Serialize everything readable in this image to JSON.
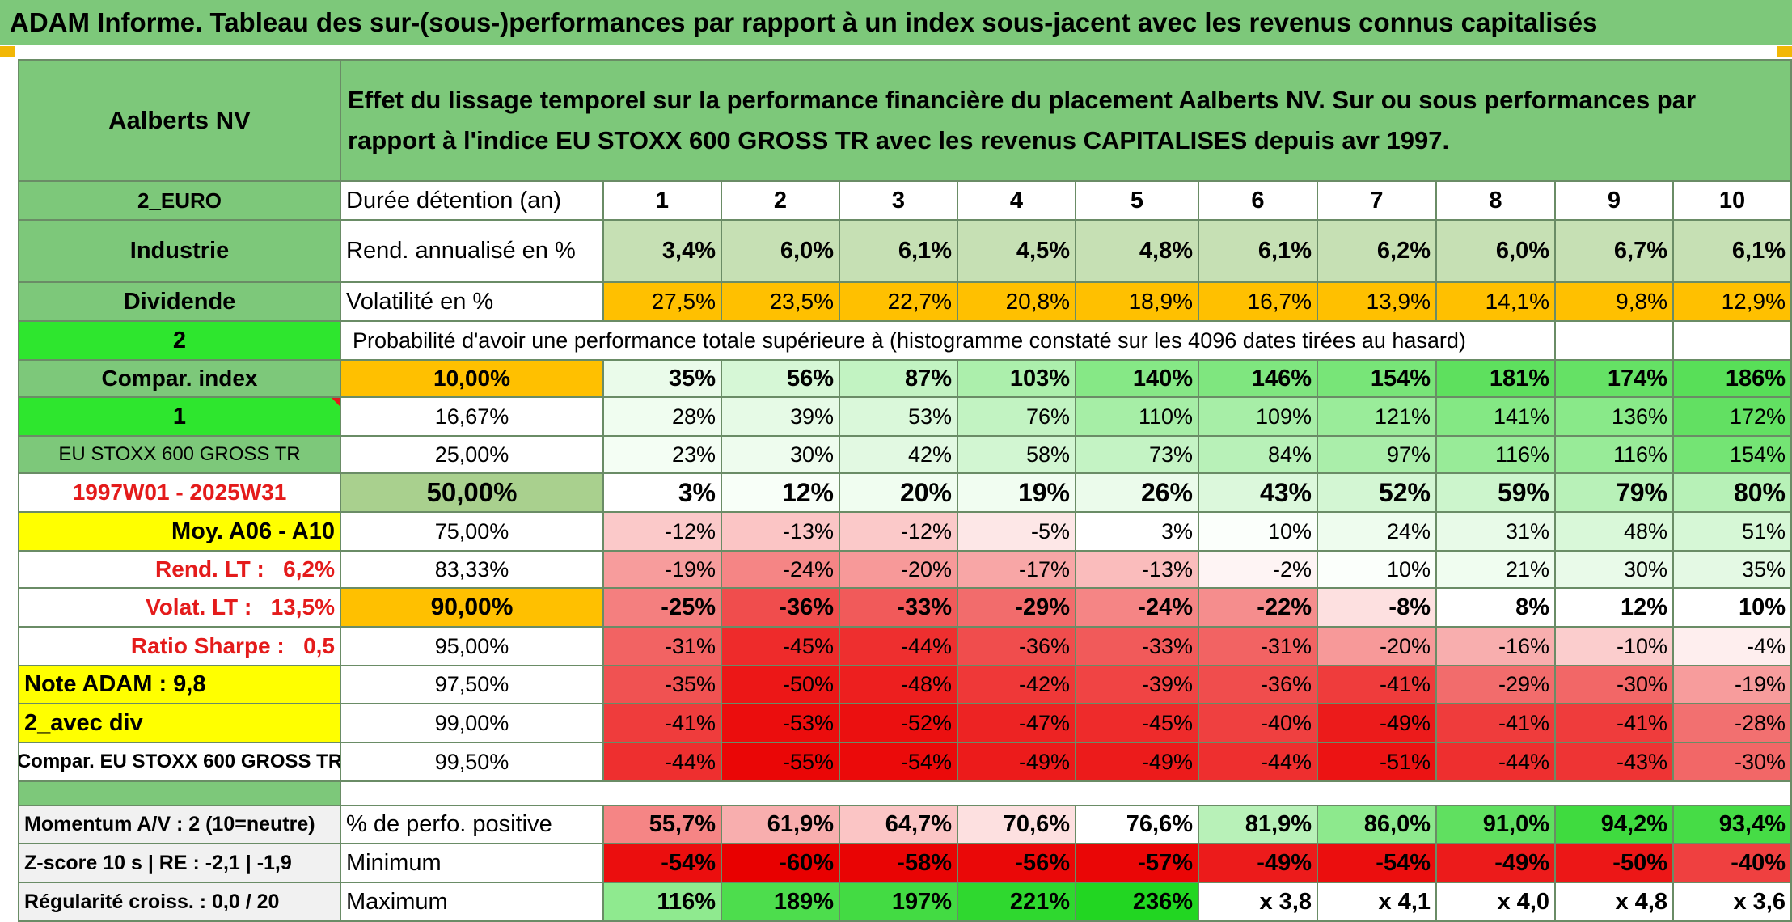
{
  "title": "ADAM Informe. Tableau des sur-(sous-)performances par rapport à un index sous-jacent avec les revenus connus capitalisés",
  "header": {
    "asset_name": "Aalberts NV",
    "description": "Effet du lissage temporel sur la performance financière du placement Aalberts NV. Sur ou sous performances par rapport à l'indice EU STOXX 600 GROSS TR avec les revenus CAPITALISES depuis avr 1997."
  },
  "left": {
    "currency": "2_EURO",
    "sector": "Industrie",
    "dividend": "Dividende",
    "code": "2",
    "compar_index": "Compar. index",
    "index_code": "1",
    "index_name": "EU STOXX 600 GROSS TR",
    "period": "1997W01 - 2025W31",
    "moy": "Moy. A06 - A10",
    "rend_lt": "Rend. LT :   6,2%",
    "volat_lt": "Volat. LT :   13,5%",
    "sharpe": "Ratio Sharpe :   0,5",
    "note": "Note ADAM : 9,8",
    "avec_div": "2_avec div",
    "compar_full": "Compar. EU STOXX 600 GROSS TR",
    "momentum": "Momentum A/V : 2 (10=neutre)",
    "zscore": "Z-score 10 s | RE : -2,1 | -1,9",
    "regularite": "Régularité croiss. : 0,0 / 20"
  },
  "labels": {
    "duree": "Durée détention (an)",
    "rend": "Rend. annualisé en %",
    "volat": "Volatilité en %",
    "proba": "Probabilité d'avoir une performance totale supérieure à (histogramme constaté sur les 4096 dates tirées au hasard)",
    "pct_pos": "% de perfo. positive",
    "minimum": "Minimum",
    "maximum": "Maximum"
  },
  "years": [
    "1",
    "2",
    "3",
    "4",
    "5",
    "6",
    "7",
    "8",
    "9",
    "10"
  ],
  "rend": [
    "3,4%",
    "6,0%",
    "6,1%",
    "4,5%",
    "4,8%",
    "6,1%",
    "6,2%",
    "6,0%",
    "6,7%",
    "6,1%"
  ],
  "volat": [
    "27,5%",
    "23,5%",
    "22,7%",
    "20,8%",
    "18,9%",
    "16,7%",
    "13,9%",
    "14,1%",
    "9,8%",
    "12,9%"
  ],
  "quantiles": [
    {
      "q": "10,00%",
      "vals": [
        "35%",
        "56%",
        "87%",
        "103%",
        "140%",
        "146%",
        "154%",
        "181%",
        "174%",
        "186%"
      ],
      "colors": [
        "#eafbea",
        "#d6f7d6",
        "#c2f3c2",
        "#acefac",
        "#86e886",
        "#7fe67f",
        "#78e578",
        "#5ee05e",
        "#65e165",
        "#58df58"
      ]
    },
    {
      "q": "16,67%",
      "vals": [
        "28%",
        "39%",
        "53%",
        "76%",
        "110%",
        "109%",
        "121%",
        "141%",
        "136%",
        "172%"
      ],
      "colors": [
        "#f0fdf0",
        "#e6fae6",
        "#daf8da",
        "#c2f3c2",
        "#a6eea6",
        "#a7eea7",
        "#9aec9a",
        "#84e884",
        "#89e989",
        "#62e062"
      ]
    },
    {
      "q": "25,00%",
      "vals": [
        "23%",
        "30%",
        "42%",
        "58%",
        "73%",
        "84%",
        "97%",
        "116%",
        "116%",
        "154%"
      ],
      "colors": [
        "#f4fef4",
        "#eefcee",
        "#e2f9e2",
        "#d2f6d2",
        "#c4f3c4",
        "#b8f1b8",
        "#aaeeaa",
        "#98eb98",
        "#98eb98",
        "#74e474"
      ]
    },
    {
      "q": "50,00%",
      "vals": [
        "3%",
        "12%",
        "20%",
        "19%",
        "26%",
        "43%",
        "52%",
        "59%",
        "79%",
        "80%"
      ],
      "colors": [
        "#ffffff",
        "#f8fff8",
        "#f0fdf0",
        "#f1fdf1",
        "#ebfbeb",
        "#dcf8dc",
        "#d3f6d3",
        "#ccf5cc",
        "#b8f1b8",
        "#b7f1b7"
      ]
    },
    {
      "q": "75,00%",
      "vals": [
        "-12%",
        "-13%",
        "-12%",
        "-5%",
        "3%",
        "10%",
        "24%",
        "31%",
        "48%",
        "51%"
      ],
      "colors": [
        "#fbc9c9",
        "#fbc5c5",
        "#fbc9c9",
        "#fde7e7",
        "#ffffff",
        "#fbfffb",
        "#eefcee",
        "#e8fae8",
        "#d9f8d9",
        "#d6f7d6"
      ]
    },
    {
      "q": "83,33%",
      "vals": [
        "-19%",
        "-24%",
        "-20%",
        "-17%",
        "-13%",
        "-2%",
        "10%",
        "21%",
        "30%",
        "35%"
      ],
      "colors": [
        "#f79c9c",
        "#f58585",
        "#f79999",
        "#f8a6a6",
        "#fabcbc",
        "#fef4f4",
        "#fbfffb",
        "#f0fdf0",
        "#e9fae9",
        "#e4f9e4"
      ]
    },
    {
      "q": "90,00%",
      "vals": [
        "-25%",
        "-36%",
        "-33%",
        "-29%",
        "-24%",
        "-22%",
        "-8%",
        "8%",
        "12%",
        "10%"
      ],
      "colors": [
        "#f47f7f",
        "#f04d4d",
        "#f15a5a",
        "#f26c6c",
        "#f58585",
        "#f58d8d",
        "#fde0e0",
        "#ffffff",
        "#ffffff",
        "#ffffff"
      ]
    },
    {
      "q": "95,00%",
      "vals": [
        "-31%",
        "-45%",
        "-44%",
        "-36%",
        "-33%",
        "-31%",
        "-20%",
        "-16%",
        "-10%",
        "-4%"
      ],
      "colors": [
        "#f26363",
        "#ee2b2b",
        "#ee2f2f",
        "#f04d4d",
        "#f15a5a",
        "#f26363",
        "#f79999",
        "#f8aeae",
        "#fbcdcd",
        "#feeeee"
      ]
    },
    {
      "q": "97,50%",
      "vals": [
        "-35%",
        "-50%",
        "-48%",
        "-42%",
        "-39%",
        "-36%",
        "-41%",
        "-29%",
        "-30%",
        "-19%"
      ],
      "colors": [
        "#f05252",
        "#ec1717",
        "#ed1f1f",
        "#ef3838",
        "#f04444",
        "#f04d4d",
        "#ef3c3c",
        "#f26c6c",
        "#f26767",
        "#f79c9c"
      ]
    },
    {
      "q": "99,00%",
      "vals": [
        "-41%",
        "-53%",
        "-52%",
        "-47%",
        "-45%",
        "-40%",
        "-49%",
        "-41%",
        "-41%",
        "-28%"
      ],
      "colors": [
        "#ef3c3c",
        "#eb0d0d",
        "#eb1010",
        "#ed2323",
        "#ee2b2b",
        "#ef4040",
        "#ec1b1b",
        "#ef3c3c",
        "#ef3c3c",
        "#f27070"
      ]
    },
    {
      "q": "99,50%",
      "vals": [
        "-44%",
        "-55%",
        "-54%",
        "-49%",
        "-49%",
        "-44%",
        "-51%",
        "-44%",
        "-43%",
        "-30%"
      ],
      "colors": [
        "#ee2f2f",
        "#ea0606",
        "#eb0a0a",
        "#ec1b1b",
        "#ec1b1b",
        "#ee2f2f",
        "#ec1313",
        "#ee2f2f",
        "#ee3434",
        "#f26767"
      ]
    }
  ],
  "pct_pos": {
    "vals": [
      "55,7%",
      "61,9%",
      "64,7%",
      "70,6%",
      "76,6%",
      "81,9%",
      "86,0%",
      "91,0%",
      "94,2%",
      "93,4%"
    ],
    "colors": [
      "#f58585",
      "#f8aeae",
      "#fbc5c5",
      "#fde0e0",
      "#ffffff",
      "#b8f1b8",
      "#8de98d",
      "#60e060",
      "#3fdb3f",
      "#46dc46"
    ]
  },
  "minimum": {
    "vals": [
      "-54%",
      "-60%",
      "-58%",
      "-56%",
      "-57%",
      "-49%",
      "-54%",
      "-49%",
      "-50%",
      "-40%"
    ],
    "colors": [
      "#eb0e0e",
      "#e80000",
      "#e90404",
      "#ea0808",
      "#ea0606",
      "#ec1b1b",
      "#eb0e0e",
      "#ec1b1b",
      "#ec1717",
      "#ef4040"
    ]
  },
  "maximum": {
    "vals": [
      "116%",
      "189%",
      "197%",
      "221%",
      "236%",
      "x 3,8",
      "x 4,1",
      "x 4,0",
      "x 4,8",
      "x 3,6"
    ],
    "colors": [
      "#8fea8f",
      "#4ddd4d",
      "#43db43",
      "#2fd82f",
      "#22d622",
      "#ffffff",
      "#ffffff",
      "#ffffff",
      "#ffffff",
      "#ffffff"
    ]
  }
}
